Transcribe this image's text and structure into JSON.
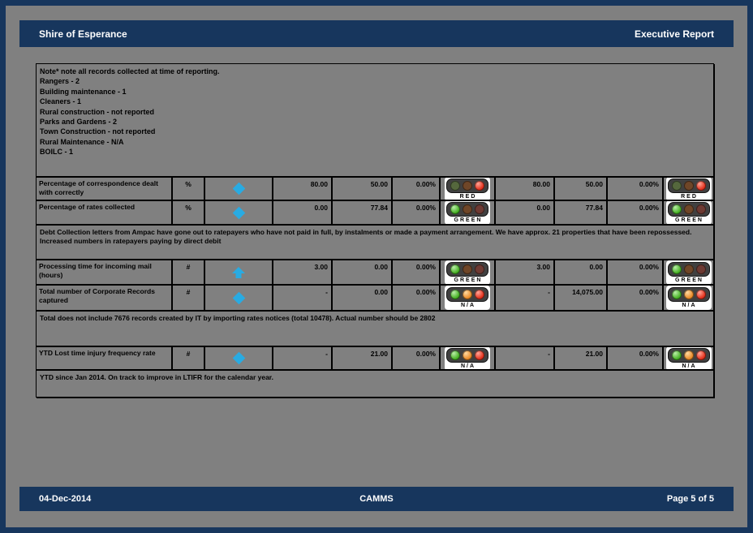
{
  "header": {
    "title": "Shire of Esperance",
    "subtitle": "Executive Report"
  },
  "footer": {
    "date": "04-Dec-2014",
    "center": "CAMMS",
    "page": "Page 5 of 5"
  },
  "colors": {
    "navy": "#17365D",
    "page_gray": "#808080",
    "accent_blue": "#29ABE2",
    "lit_red": "#E3331F",
    "lit_green": "#49B227",
    "lit_amber": "#EA8C2B"
  },
  "table": {
    "notes": "Note* note all records collected at time of reporting.\nRangers - 2\nBuilding maintenance - 1\nCleaners - 1\nRural construction - not reported\nParks and Gardens - 2\nTown Construction - not reported\nRural Maintenance - N/A\nBOILC - 1",
    "kpi_rows": [
      {
        "name": "Percentage of correspondence dealt with correctly",
        "unit": "%",
        "icon": "diamond",
        "p_v1": "80.00",
        "p_v2": "50.00",
        "p_pct": "0.00%",
        "p_status": "RED",
        "y_v1": "80.00",
        "y_v2": "50.00",
        "y_pct": "0.00%",
        "y_status": "RED"
      },
      {
        "name": "Percentage of rates collected",
        "unit": "%",
        "icon": "diamond",
        "p_v1": "0.00",
        "p_v2": "77.84",
        "p_pct": "0.00%",
        "p_status": "GREEN",
        "y_v1": "0.00",
        "y_v2": "77.84",
        "y_pct": "0.00%",
        "y_status": "GREEN"
      },
      {
        "name": "Processing time for incoming mail (hours)",
        "unit": "#",
        "icon": "up-arrow",
        "p_v1": "3.00",
        "p_v2": "0.00",
        "p_pct": "0.00%",
        "p_status": "GREEN",
        "y_v1": "3.00",
        "y_v2": "0.00",
        "y_pct": "0.00%",
        "y_status": "GREEN"
      },
      {
        "name": "Total number of Corporate Records captured",
        "unit": "#",
        "icon": "diamond",
        "p_v1": "-",
        "p_v2": "0.00",
        "p_pct": "0.00%",
        "p_status": "N/A",
        "y_v1": "-",
        "y_v2": "14,075.00",
        "y_pct": "0.00%",
        "y_status": "N/A"
      },
      {
        "name": "YTD Lost time injury frequency rate",
        "unit": "#",
        "icon": "diamond",
        "p_v1": "-",
        "p_v2": "21.00",
        "p_pct": "0.00%",
        "p_status": "N/A",
        "y_v1": "-",
        "y_v2": "21.00",
        "y_pct": "0.00%",
        "y_status": "N/A"
      }
    ],
    "comments": [
      "Debt Collection letters from Ampac have gone out to ratepayers who have not paid in full, by instalments or made a payment arrangement. We have approx. 21 properties that have been repossessed. Increased numbers in ratepayers paying by direct debit",
      "Total does not include 7676 records created by IT by importing rates notices (total 10478). Actual number should be 2802",
      "YTD since Jan 2014. On track to improve in LTIFR for the calendar year."
    ]
  }
}
